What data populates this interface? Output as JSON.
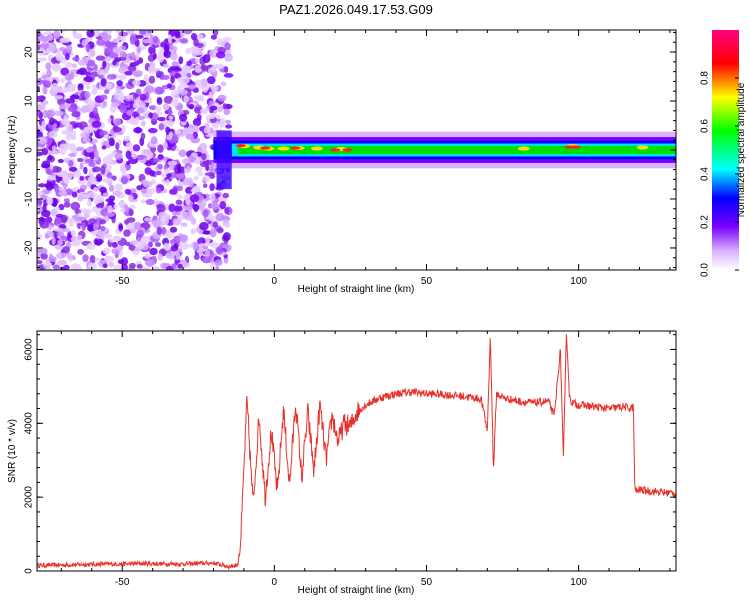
{
  "page_title": "PAZ1.2026.049.17.53.G09",
  "chart_data": [
    {
      "type": "heatmap",
      "title": "PAZ1.2026.049.17.53.G09",
      "xlabel": "Height of straight line (km)",
      "ylabel": "Frequency (Hz)",
      "xlim": [
        -78,
        132
      ],
      "ylim": [
        -24.5,
        24.5
      ],
      "x_ticks": [
        -50,
        0,
        50,
        100
      ],
      "x_tick_labels": [
        "-50",
        "0",
        "50",
        "100"
      ],
      "y_ticks": [
        -20,
        -10,
        0,
        10,
        20
      ],
      "y_tick_labels": [
        "-20",
        "-10",
        "0",
        "10",
        "20"
      ],
      "noise_region_x": [
        -78,
        -15
      ],
      "signal_band": {
        "x_start": -20,
        "x_end": 132,
        "center_hz": 0,
        "halfwidth_hz": 2.2
      },
      "colorbar": {
        "label": "Normalized spectral amplitude",
        "range": [
          0,
          1
        ],
        "ticks": [
          0,
          0.2,
          0.4,
          0.6,
          0.8
        ],
        "tick_labels": [
          "0.0",
          "0.2",
          "0.4",
          "0.6",
          "0.8"
        ],
        "colormap": [
          "#ffffff",
          "#7a00ff",
          "#0000ff",
          "#00ffff",
          "#00ff00",
          "#ffff00",
          "#ff0000",
          "#ff0080"
        ]
      }
    },
    {
      "type": "line",
      "title": "",
      "xlabel": "Height of straight line (km)",
      "ylabel": "SNR (10 * v/v)",
      "xlim": [
        -78,
        132
      ],
      "ylim": [
        0,
        6500
      ],
      "x_ticks": [
        -50,
        0,
        50,
        100
      ],
      "x_tick_labels": [
        "-50",
        "0",
        "50",
        "100"
      ],
      "y_ticks": [
        0,
        2000,
        4000,
        6000
      ],
      "y_tick_labels": [
        "0",
        "2000",
        "4000",
        "6000"
      ],
      "color": "#e8312b",
      "series": [
        {
          "name": "SNR",
          "x": [
            -78,
            -60,
            -45,
            -30,
            -20,
            -15,
            -12,
            -11,
            -9,
            -7,
            -5,
            -3,
            -1,
            1,
            3,
            5,
            7,
            9,
            11,
            13,
            15,
            17,
            19,
            21,
            23,
            25,
            27,
            30,
            35,
            40,
            45,
            50,
            55,
            60,
            65,
            68,
            70,
            71,
            72,
            73,
            75,
            80,
            85,
            90,
            92,
            94,
            95,
            96,
            97,
            98,
            100,
            105,
            110,
            115,
            117,
            118,
            118.5,
            120,
            125,
            132
          ],
          "y": [
            150,
            180,
            200,
            190,
            220,
            120,
            160,
            900,
            4600,
            1800,
            4200,
            2000,
            3800,
            2100,
            4400,
            2300,
            4600,
            2500,
            4300,
            2700,
            4500,
            3000,
            4200,
            3500,
            4000,
            3900,
            4300,
            4500,
            4700,
            4800,
            4850,
            4800,
            4780,
            4750,
            4700,
            4650,
            3800,
            6400,
            2700,
            4800,
            4700,
            4600,
            4550,
            4600,
            4200,
            6000,
            3000,
            6500,
            4700,
            4550,
            4500,
            4450,
            4400,
            4450,
            4400,
            4450,
            2150,
            2200,
            2150,
            2100
          ]
        }
      ]
    }
  ]
}
